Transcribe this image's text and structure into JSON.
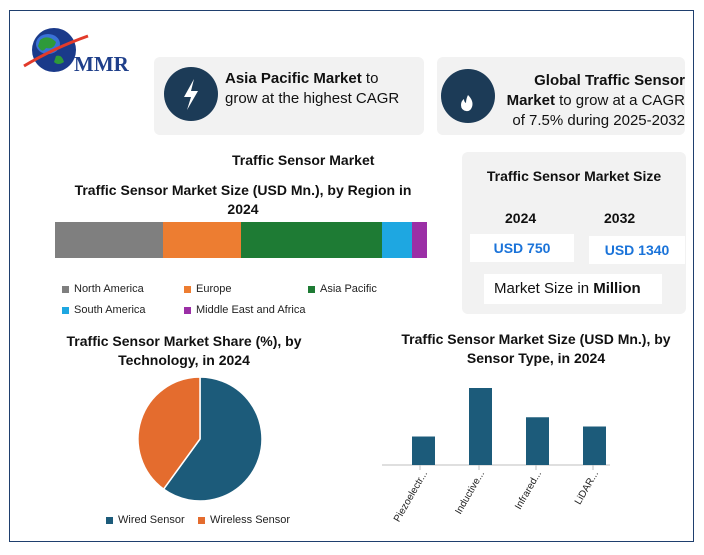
{
  "logo": {
    "text": "MMR"
  },
  "cards": {
    "asia": {
      "bold": "Asia Pacific Market",
      "rest": " to grow at the highest CAGR",
      "icon": "lightning-icon"
    },
    "global": {
      "bold": "Global Traffic Sensor Market",
      "rest": " to grow at a CAGR of 7.5% during 2025-2032",
      "icon": "flame-icon"
    }
  },
  "main_title": "Traffic Sensor Market",
  "market_size": {
    "title": "Traffic Sensor Market Size",
    "year1": "2024",
    "year2": "2032",
    "value1": "USD 750",
    "value2": "USD 1340",
    "unit_prefix": "Market Size in ",
    "unit_bold": "Million"
  },
  "chart_data": [
    {
      "type": "bar",
      "stacked": true,
      "orientation": "horizontal",
      "title": "Traffic Sensor Market Size (USD Mn.), by Region in 2024",
      "series": [
        {
          "name": "North America",
          "value": 29,
          "color": "#7f7f7f"
        },
        {
          "name": "Europe",
          "value": 21,
          "color": "#ed7d31"
        },
        {
          "name": "Asia Pacific",
          "value": 38,
          "color": "#1e7b34"
        },
        {
          "name": "South America",
          "value": 8,
          "color": "#1ea7e1"
        },
        {
          "name": "Middle East and Africa",
          "value": 4,
          "color": "#9b2fa6"
        }
      ],
      "legend": "bottom"
    },
    {
      "type": "pie",
      "title": "Traffic Sensor Market Share (%), by Technology, in 2024",
      "slices": [
        {
          "name": "Wired Sensor",
          "value": 60,
          "color": "#1c5b7a"
        },
        {
          "name": "Wireless Sensor",
          "value": 40,
          "color": "#e46c2e"
        }
      ],
      "legend": "bottom"
    },
    {
      "type": "bar",
      "title": "Traffic Sensor Market Size (USD Mn.), by Sensor Type, in 2024",
      "categories": [
        "Piezoelectr...",
        "Inductive...",
        "Infrared...",
        "LiDAR..."
      ],
      "values": [
        0.37,
        1.0,
        0.62,
        0.5
      ],
      "color": "#1c5b7a",
      "grid": false
    }
  ]
}
